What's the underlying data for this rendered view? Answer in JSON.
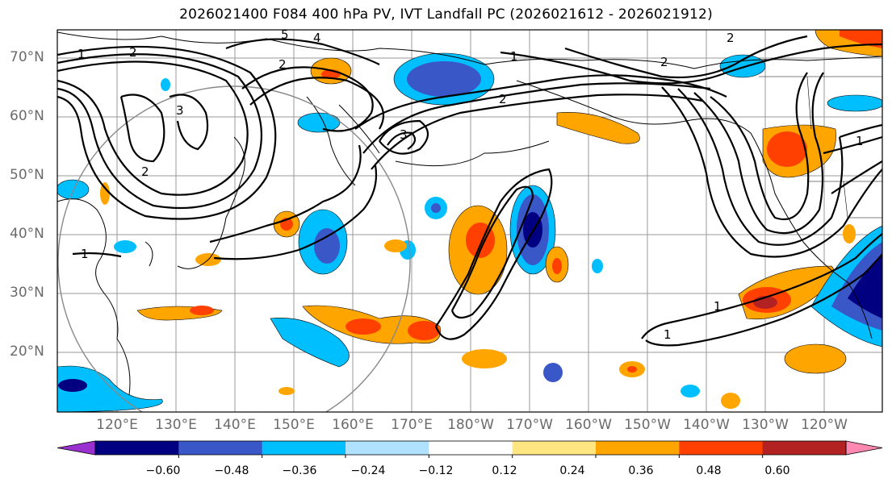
{
  "title": "2026021400 F084 400 hPa PV, IVT Landfall PC (2026021612 - 2026021912)",
  "lat_labels": [
    "70°N",
    "60°N",
    "50°N",
    "40°N",
    "30°N",
    "20°N"
  ],
  "lon_labels": [
    "120°E",
    "130°E",
    "140°E",
    "150°E",
    "160°E",
    "170°E",
    "180°W",
    "170°W",
    "160°W",
    "150°W",
    "140°W",
    "130°W",
    "120°W"
  ],
  "colorbar": {
    "tick_labels": [
      "−0.60",
      "−0.48",
      "−0.36",
      "−0.24",
      "−0.12",
      "0.12",
      "0.24",
      "0.36",
      "0.48",
      "0.60"
    ],
    "colors": [
      "#9b30d0",
      "#000080",
      "#3a57c8",
      "#00bfff",
      "#b0e2ff",
      "#ffffff",
      "#ffe680",
      "#ffa500",
      "#ff4000",
      "#b22222",
      "#ff88b0"
    ]
  },
  "contour_labels": [
    "1",
    "1",
    "1",
    "1",
    "1",
    "1",
    "2",
    "2",
    "2",
    "2",
    "2",
    "2",
    "3",
    "3",
    "4",
    "5"
  ]
}
